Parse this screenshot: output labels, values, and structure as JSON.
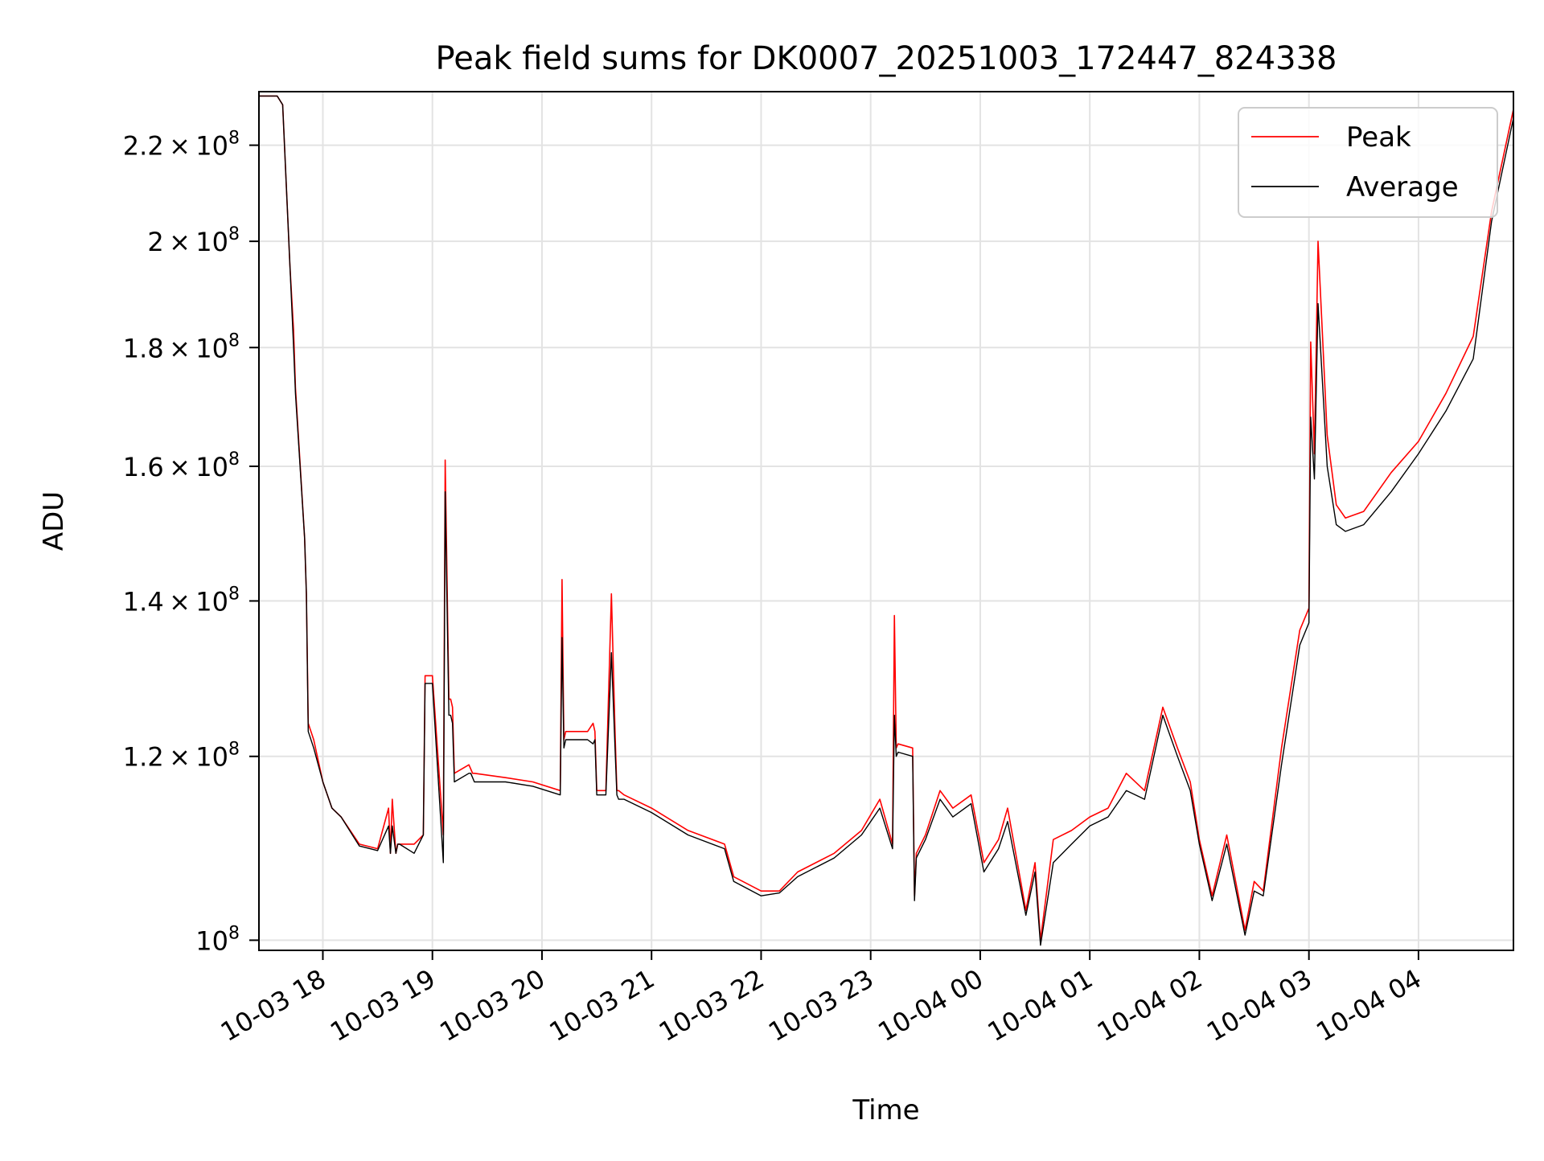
{
  "chart_data": {
    "type": "line",
    "title": "Peak field sums for DK0007_20251003_172447_824338",
    "xlabel": "Time",
    "ylabel": "ADU",
    "y_scale": "log",
    "ylim": [
      99000000,
      232000000
    ],
    "xlim": [
      "2025-10-03T17:25:00",
      "2025-10-04T04:52:00"
    ],
    "grid": true,
    "legend_position": "top-right",
    "x_ticks": [
      {
        "t": "2025-10-03T18:00:00",
        "label": "10-03 18"
      },
      {
        "t": "2025-10-03T19:00:00",
        "label": "10-03 19"
      },
      {
        "t": "2025-10-03T20:00:00",
        "label": "10-03 20"
      },
      {
        "t": "2025-10-03T21:00:00",
        "label": "10-03 21"
      },
      {
        "t": "2025-10-03T22:00:00",
        "label": "10-03 22"
      },
      {
        "t": "2025-10-03T23:00:00",
        "label": "10-03 23"
      },
      {
        "t": "2025-10-04T00:00:00",
        "label": "10-04 00"
      },
      {
        "t": "2025-10-04T01:00:00",
        "label": "10-04 01"
      },
      {
        "t": "2025-10-04T02:00:00",
        "label": "10-04 02"
      },
      {
        "t": "2025-10-04T03:00:00",
        "label": "10-04 03"
      },
      {
        "t": "2025-10-04T04:00:00",
        "label": "10-04 04"
      }
    ],
    "y_ticks": [
      {
        "v": 100000000,
        "base": "10",
        "exp": "8",
        "mant": ""
      },
      {
        "v": 120000000,
        "base": "10",
        "exp": "8",
        "mant": "1.2"
      },
      {
        "v": 140000000,
        "base": "10",
        "exp": "8",
        "mant": "1.4"
      },
      {
        "v": 160000000,
        "base": "10",
        "exp": "8",
        "mant": "1.6"
      },
      {
        "v": 180000000,
        "base": "10",
        "exp": "8",
        "mant": "1.8"
      },
      {
        "v": 200000000,
        "base": "10",
        "exp": "8",
        "mant": "2"
      },
      {
        "v": 220000000,
        "base": "10",
        "exp": "8",
        "mant": "2.2"
      }
    ],
    "series": [
      {
        "name": "Peak",
        "color": "#ff0000",
        "x": [
          "2025-10-03T17:25:00",
          "2025-10-03T17:35:00",
          "2025-10-03T17:38:00",
          "2025-10-03T17:42:00",
          "2025-10-03T17:44:00",
          "2025-10-03T17:45:00",
          "2025-10-03T17:50:00",
          "2025-10-03T17:51:00",
          "2025-10-03T17:52:00",
          "2025-10-03T17:55:00",
          "2025-10-03T18:00:00",
          "2025-10-03T18:05:00",
          "2025-10-03T18:10:00",
          "2025-10-03T18:20:00",
          "2025-10-03T18:30:00",
          "2025-10-03T18:36:00",
          "2025-10-03T18:37:00",
          "2025-10-03T18:38:00",
          "2025-10-03T18:40:00",
          "2025-10-03T18:41:00",
          "2025-10-03T18:42:00",
          "2025-10-03T18:50:00",
          "2025-10-03T18:55:00",
          "2025-10-03T18:56:00",
          "2025-10-03T18:57:00",
          "2025-10-03T19:00:00",
          "2025-10-03T19:06:00",
          "2025-10-03T19:07:00",
          "2025-10-03T19:09:00",
          "2025-10-03T19:10:00",
          "2025-10-03T19:11:00",
          "2025-10-03T19:12:00",
          "2025-10-03T19:20:00",
          "2025-10-03T19:21:00",
          "2025-10-03T19:22:00",
          "2025-10-03T19:23:00",
          "2025-10-03T19:40:00",
          "2025-10-03T19:55:00",
          "2025-10-03T20:10:00",
          "2025-10-03T20:11:00",
          "2025-10-03T20:12:00",
          "2025-10-03T20:13:00",
          "2025-10-03T20:25:00",
          "2025-10-03T20:28:00",
          "2025-10-03T20:29:00",
          "2025-10-03T20:30:00",
          "2025-10-03T20:35:00",
          "2025-10-03T20:38:00",
          "2025-10-03T20:40:00",
          "2025-10-03T20:41:00",
          "2025-10-03T20:42:00",
          "2025-10-03T20:45:00",
          "2025-10-03T21:00:00",
          "2025-10-03T21:20:00",
          "2025-10-03T21:40:00",
          "2025-10-03T21:45:00",
          "2025-10-03T22:00:00",
          "2025-10-03T22:10:00",
          "2025-10-03T22:20:00",
          "2025-10-03T22:40:00",
          "2025-10-03T22:55:00",
          "2025-10-03T23:05:00",
          "2025-10-03T23:12:00",
          "2025-10-03T23:13:00",
          "2025-10-03T23:14:00",
          "2025-10-03T23:15:00",
          "2025-10-03T23:23:00",
          "2025-10-03T23:24:00",
          "2025-10-03T23:25:00",
          "2025-10-03T23:30:00",
          "2025-10-03T23:38:00",
          "2025-10-03T23:45:00",
          "2025-10-03T23:55:00",
          "2025-10-04T00:02:00",
          "2025-10-04T00:10:00",
          "2025-10-04T00:15:00",
          "2025-10-04T00:25:00",
          "2025-10-04T00:30:00",
          "2025-10-04T00:33:00",
          "2025-10-04T00:40:00",
          "2025-10-04T00:50:00",
          "2025-10-04T01:00:00",
          "2025-10-04T01:10:00",
          "2025-10-04T01:20:00",
          "2025-10-04T01:30:00",
          "2025-10-04T01:40:00",
          "2025-10-04T01:48:00",
          "2025-10-04T01:55:00",
          "2025-10-04T02:00:00",
          "2025-10-04T02:07:00",
          "2025-10-04T02:15:00",
          "2025-10-04T02:25:00",
          "2025-10-04T02:30:00",
          "2025-10-04T02:35:00",
          "2025-10-04T02:45:00",
          "2025-10-04T02:55:00",
          "2025-10-04T03:00:00",
          "2025-10-04T03:01:00",
          "2025-10-04T03:03:00",
          "2025-10-04T03:05:00",
          "2025-10-04T03:10:00",
          "2025-10-04T03:15:00",
          "2025-10-04T03:20:00",
          "2025-10-04T03:30:00",
          "2025-10-04T03:45:00",
          "2025-10-04T04:00:00",
          "2025-10-04T04:15:00",
          "2025-10-04T04:30:00",
          "2025-10-04T04:40:00",
          "2025-10-04T04:52:00"
        ],
        "y": [
          231000000,
          231000000,
          229000000,
          195000000,
          183000000,
          173000000,
          149000000,
          141000000,
          124000000,
          122000000,
          117000000,
          114000000,
          113000000,
          110000000,
          109500000,
          114000000,
          109000000,
          115000000,
          109000000,
          110000000,
          110000000,
          110000000,
          111000000,
          130000000,
          130000000,
          130000000,
          111000000,
          161000000,
          127000000,
          127000000,
          126000000,
          118000000,
          119000000,
          118500000,
          118000000,
          118000000,
          117500000,
          117000000,
          116000000,
          143000000,
          122000000,
          123000000,
          123000000,
          124000000,
          123000000,
          116000000,
          116000000,
          141000000,
          123000000,
          116000000,
          116000000,
          115500000,
          114000000,
          111500000,
          110000000,
          106500000,
          105000000,
          105000000,
          107000000,
          109000000,
          111500000,
          115000000,
          110000000,
          138000000,
          121000000,
          121500000,
          121000000,
          104500000,
          109000000,
          111000000,
          116000000,
          114000000,
          115500000,
          108000000,
          110500000,
          114000000,
          103000000,
          108000000,
          100000000,
          110500000,
          111500000,
          113000000,
          114000000,
          118000000,
          116000000,
          126000000,
          121000000,
          117000000,
          110500000,
          104500000,
          111000000,
          101000000,
          106000000,
          105000000,
          121000000,
          136000000,
          139000000,
          181000000,
          162000000,
          200000000,
          165000000,
          154000000,
          152000000,
          153000000,
          159000000,
          164000000,
          172000000,
          182000000,
          206000000,
          228000000
        ]
      },
      {
        "name": "Average",
        "color": "#000000",
        "x": [
          "2025-10-03T17:25:00",
          "2025-10-03T17:35:00",
          "2025-10-03T17:38:00",
          "2025-10-03T17:42:00",
          "2025-10-03T17:44:00",
          "2025-10-03T17:45:00",
          "2025-10-03T17:50:00",
          "2025-10-03T17:51:00",
          "2025-10-03T17:52:00",
          "2025-10-03T17:55:00",
          "2025-10-03T18:00:00",
          "2025-10-03T18:05:00",
          "2025-10-03T18:10:00",
          "2025-10-03T18:20:00",
          "2025-10-03T18:30:00",
          "2025-10-03T18:36:00",
          "2025-10-03T18:37:00",
          "2025-10-03T18:38:00",
          "2025-10-03T18:40:00",
          "2025-10-03T18:41:00",
          "2025-10-03T18:42:00",
          "2025-10-03T18:50:00",
          "2025-10-03T18:55:00",
          "2025-10-03T18:56:00",
          "2025-10-03T18:57:00",
          "2025-10-03T19:00:00",
          "2025-10-03T19:06:00",
          "2025-10-03T19:07:00",
          "2025-10-03T19:09:00",
          "2025-10-03T19:10:00",
          "2025-10-03T19:11:00",
          "2025-10-03T19:12:00",
          "2025-10-03T19:20:00",
          "2025-10-03T19:21:00",
          "2025-10-03T19:22:00",
          "2025-10-03T19:23:00",
          "2025-10-03T19:40:00",
          "2025-10-03T19:55:00",
          "2025-10-03T20:10:00",
          "2025-10-03T20:11:00",
          "2025-10-03T20:12:00",
          "2025-10-03T20:13:00",
          "2025-10-03T20:25:00",
          "2025-10-03T20:28:00",
          "2025-10-03T20:29:00",
          "2025-10-03T20:30:00",
          "2025-10-03T20:35:00",
          "2025-10-03T20:38:00",
          "2025-10-03T20:40:00",
          "2025-10-03T20:41:00",
          "2025-10-03T20:42:00",
          "2025-10-03T20:45:00",
          "2025-10-03T21:00:00",
          "2025-10-03T21:20:00",
          "2025-10-03T21:40:00",
          "2025-10-03T21:45:00",
          "2025-10-03T22:00:00",
          "2025-10-03T22:10:00",
          "2025-10-03T22:20:00",
          "2025-10-03T22:40:00",
          "2025-10-03T22:55:00",
          "2025-10-03T23:05:00",
          "2025-10-03T23:12:00",
          "2025-10-03T23:13:00",
          "2025-10-03T23:14:00",
          "2025-10-03T23:15:00",
          "2025-10-03T23:23:00",
          "2025-10-03T23:24:00",
          "2025-10-03T23:25:00",
          "2025-10-03T23:30:00",
          "2025-10-03T23:38:00",
          "2025-10-03T23:45:00",
          "2025-10-03T23:55:00",
          "2025-10-04T00:02:00",
          "2025-10-04T00:10:00",
          "2025-10-04T00:15:00",
          "2025-10-04T00:25:00",
          "2025-10-04T00:30:00",
          "2025-10-04T00:33:00",
          "2025-10-04T00:40:00",
          "2025-10-04T00:50:00",
          "2025-10-04T01:00:00",
          "2025-10-04T01:10:00",
          "2025-10-04T01:20:00",
          "2025-10-04T01:30:00",
          "2025-10-04T01:40:00",
          "2025-10-04T01:48:00",
          "2025-10-04T01:55:00",
          "2025-10-04T02:00:00",
          "2025-10-04T02:07:00",
          "2025-10-04T02:15:00",
          "2025-10-04T02:25:00",
          "2025-10-04T02:30:00",
          "2025-10-04T02:35:00",
          "2025-10-04T02:45:00",
          "2025-10-04T02:55:00",
          "2025-10-04T03:00:00",
          "2025-10-04T03:01:00",
          "2025-10-04T03:03:00",
          "2025-10-04T03:05:00",
          "2025-10-04T03:10:00",
          "2025-10-04T03:15:00",
          "2025-10-04T03:20:00",
          "2025-10-04T03:30:00",
          "2025-10-04T03:45:00",
          "2025-10-04T04:00:00",
          "2025-10-04T04:15:00",
          "2025-10-04T04:30:00",
          "2025-10-04T04:40:00",
          "2025-10-04T04:52:00"
        ],
        "y": [
          231000000,
          231000000,
          229000000,
          195000000,
          180000000,
          172000000,
          149000000,
          141000000,
          123000000,
          121000000,
          117000000,
          114000000,
          113000000,
          109800000,
          109300000,
          112000000,
          109000000,
          112000000,
          109000000,
          110000000,
          110000000,
          109000000,
          111000000,
          129000000,
          129000000,
          129000000,
          108000000,
          156000000,
          125000000,
          125000000,
          124000000,
          117000000,
          118000000,
          118000000,
          117500000,
          117000000,
          117000000,
          116500000,
          115500000,
          135000000,
          121000000,
          122000000,
          122000000,
          121500000,
          122000000,
          115500000,
          115500000,
          133000000,
          121000000,
          115500000,
          115000000,
          115000000,
          113500000,
          111000000,
          109500000,
          106000000,
          104500000,
          104800000,
          106500000,
          108500000,
          111000000,
          114000000,
          109500000,
          125000000,
          120000000,
          120500000,
          120000000,
          104000000,
          108500000,
          110500000,
          115000000,
          113000000,
          114500000,
          107000000,
          109500000,
          112500000,
          102500000,
          107000000,
          99500000,
          108000000,
          110000000,
          112000000,
          113000000,
          116000000,
          115000000,
          125000000,
          120000000,
          116000000,
          110000000,
          104000000,
          110000000,
          100500000,
          105000000,
          104500000,
          119000000,
          134000000,
          137000000,
          168000000,
          158000000,
          188000000,
          160000000,
          151000000,
          150000000,
          151000000,
          156000000,
          162000000,
          169000000,
          178000000,
          204000000,
          226000000
        ]
      }
    ]
  }
}
